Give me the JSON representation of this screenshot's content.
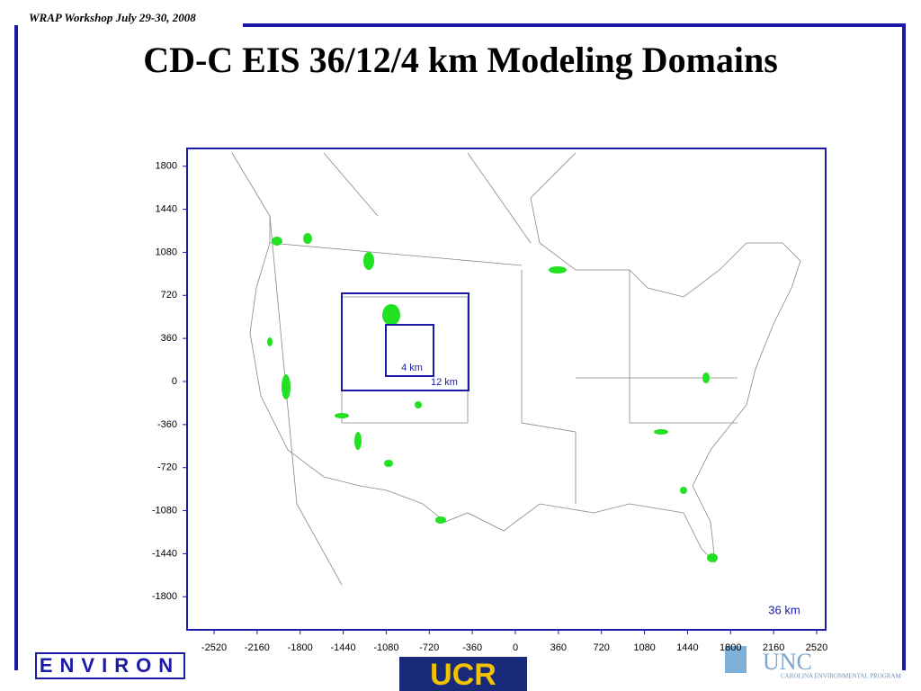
{
  "header": {
    "note": "WRAP Workshop July 29-30, 2008",
    "title": "CD-C EIS 36/12/4 km Modeling Domains"
  },
  "map": {
    "xticks": [
      -2520,
      -2160,
      -1800,
      -1440,
      -1080,
      -720,
      -360,
      0,
      360,
      720,
      1080,
      1440,
      1800,
      2160,
      2520
    ],
    "yticks": [
      1800,
      1440,
      1080,
      720,
      360,
      0,
      -360,
      -720,
      -1080,
      -1440,
      -1800
    ],
    "domains": [
      "36 km",
      "12 km",
      "4 km"
    ]
  },
  "footer": {
    "logo_left": "ENVIRON",
    "logo_center": "UCR",
    "logo_right": "UNC",
    "logo_right_sub": "CAROLINA ENVIRONMENTAL PROGRAM"
  }
}
